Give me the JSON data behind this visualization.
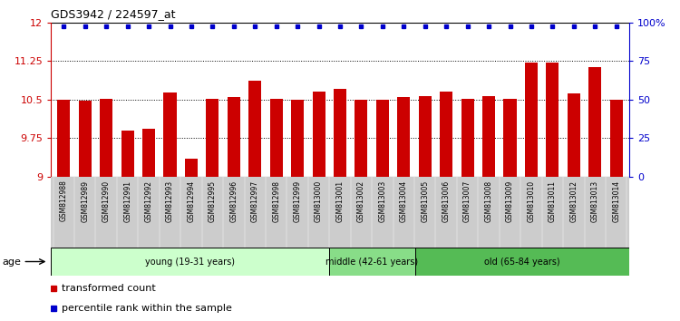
{
  "title": "GDS3942 / 224597_at",
  "samples": [
    "GSM812988",
    "GSM812989",
    "GSM812990",
    "GSM812991",
    "GSM812992",
    "GSM812993",
    "GSM812994",
    "GSM812995",
    "GSM812996",
    "GSM812997",
    "GSM812998",
    "GSM812999",
    "GSM813000",
    "GSM813001",
    "GSM813002",
    "GSM813003",
    "GSM813004",
    "GSM813005",
    "GSM813006",
    "GSM813007",
    "GSM813008",
    "GSM813009",
    "GSM813010",
    "GSM813011",
    "GSM813012",
    "GSM813013",
    "GSM813014"
  ],
  "bar_values": [
    10.5,
    10.47,
    10.52,
    9.9,
    9.93,
    10.63,
    9.35,
    10.52,
    10.55,
    10.87,
    10.52,
    10.5,
    10.65,
    10.7,
    10.5,
    10.5,
    10.55,
    10.56,
    10.65,
    10.52,
    10.56,
    10.52,
    11.22,
    11.22,
    10.62,
    11.13,
    10.5
  ],
  "percentile_values": [
    11.93,
    11.93,
    11.93,
    11.93,
    11.93,
    11.93,
    11.93,
    11.93,
    11.93,
    11.93,
    11.93,
    11.93,
    11.93,
    11.93,
    11.93,
    11.93,
    11.93,
    11.93,
    11.93,
    11.93,
    11.93,
    11.93,
    11.93,
    11.93,
    11.93,
    11.93,
    11.93
  ],
  "ylim_left": [
    9.0,
    12.0
  ],
  "ylim_right": [
    0,
    100
  ],
  "yticks_left": [
    9.0,
    9.75,
    10.5,
    11.25,
    12.0
  ],
  "ytick_labels_left": [
    "9",
    "9.75",
    "10.5",
    "11.25",
    "12"
  ],
  "yticks_right": [
    0,
    25,
    50,
    75,
    100
  ],
  "ytick_labels_right": [
    "0",
    "25",
    "50",
    "75",
    "100%"
  ],
  "bar_color": "#cc0000",
  "percentile_color": "#0000cc",
  "groups": [
    {
      "label": "young (19-31 years)",
      "start": 0,
      "end": 13,
      "color": "#ccffcc"
    },
    {
      "label": "middle (42-61 years)",
      "start": 13,
      "end": 17,
      "color": "#88dd88"
    },
    {
      "label": "old (65-84 years)",
      "start": 17,
      "end": 27,
      "color": "#55bb55"
    }
  ],
  "age_label": "age",
  "legend_items": [
    {
      "label": "transformed count",
      "color": "#cc0000"
    },
    {
      "label": "percentile rank within the sample",
      "color": "#0000cc"
    }
  ],
  "background_color": "#ffffff",
  "tick_color_left": "#cc0000",
  "tick_color_right": "#0000cc",
  "xtick_bg_color": "#cccccc"
}
